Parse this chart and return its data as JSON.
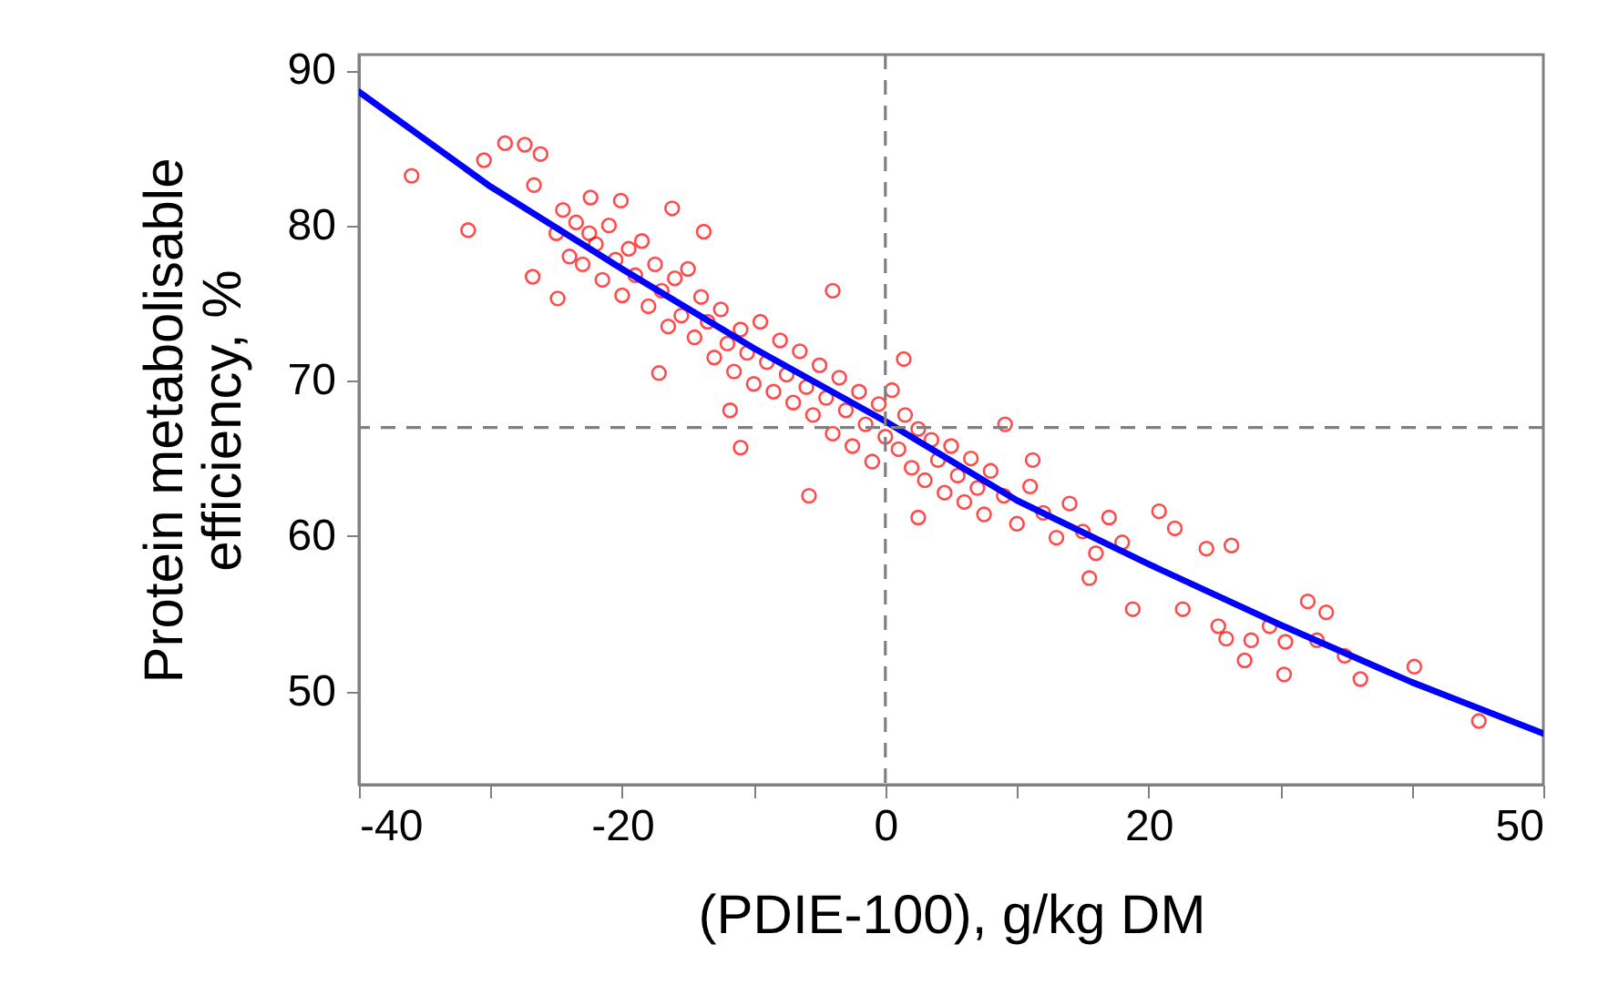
{
  "chart_data": {
    "type": "scatter",
    "xlabel": "(PDIE-100), g/kg DM",
    "ylabel": "Protein metabolisable\nefficiency, %",
    "xlim": [
      -40,
      50
    ],
    "xticks": [
      -40,
      {
        "value": -30,
        "label": null
      },
      -20,
      {
        "value": -10,
        "label": null
      },
      0,
      {
        "value": 10,
        "label": null
      },
      20,
      {
        "value": 30,
        "label": null
      },
      {
        "value": 40,
        "label": null
      },
      50
    ],
    "ylim": [
      44,
      91
    ],
    "yticks": [
      50,
      60,
      70,
      80,
      90
    ],
    "ref_lines": [
      {
        "axis": "x",
        "value": 0,
        "color": "#808080",
        "line_style": "dashed"
      },
      {
        "axis": "y",
        "value": 67,
        "color": "#808080",
        "line_style": "dashed"
      }
    ],
    "series": [
      {
        "color": "#ff0000",
        "marker": "circle",
        "x": [
          -36,
          -31.7,
          -30.5,
          -28.9,
          -27.4,
          -26.2,
          -26.7,
          -26.8,
          -24.9,
          -22.4,
          -20.1,
          -16.2,
          -13.8,
          -17.2,
          -11.8,
          -4,
          1.4,
          -11,
          -5.8,
          2.5,
          9.1,
          11.2,
          20.8,
          22,
          24.4,
          26.3,
          18.8,
          15.5,
          22.6,
          25.3,
          25.9,
          27.3,
          27.8,
          30.3,
          32.1,
          33.5,
          32.8,
          34.9,
          36.1,
          40.2,
          45.1,
          29.2,
          30.4,
          -25,
          -24.5,
          -24,
          -23.5,
          -23,
          -22.5,
          -22,
          -21.5,
          -21,
          -20.5,
          -20,
          -19.5,
          -19,
          -18.5,
          -18,
          -17.5,
          -17,
          -16.5,
          -16,
          -15.5,
          -15,
          -14.5,
          -14,
          -13.5,
          -13,
          -12.5,
          -12,
          -11.5,
          -11,
          -10.5,
          -10,
          -9.5,
          -9,
          -8.5,
          -8,
          -7.5,
          -7,
          -6.5,
          -6,
          -5.5,
          -5,
          -4.5,
          -4,
          -3.5,
          -3,
          -2.5,
          -2,
          -1.5,
          -1,
          -0.5,
          0,
          0.5,
          1,
          1.5,
          2,
          2.5,
          3,
          3.5,
          4,
          4.5,
          5,
          5.5,
          6,
          6.5,
          7,
          7.5,
          8,
          9,
          10,
          11,
          12,
          13,
          14,
          15,
          16,
          17,
          18
        ],
        "values": [
          83.2,
          79.7,
          84.2,
          85.3,
          85.2,
          84.6,
          82.6,
          76.7,
          75.3,
          81.8,
          81.6,
          81.1,
          79.6,
          70.5,
          68.1,
          75.8,
          71.4,
          65.7,
          62.6,
          61.2,
          67.2,
          64.9,
          61.6,
          60.5,
          59.2,
          59.4,
          55.3,
          57.3,
          55.3,
          54.2,
          53.4,
          52,
          53.3,
          51.1,
          55.8,
          55.1,
          53.3,
          52.3,
          50.8,
          51.6,
          48.1,
          54.2,
          53.2,
          79.5,
          81,
          78,
          80.2,
          77.5,
          79.5,
          78.8,
          76.5,
          80,
          77.8,
          75.5,
          78.5,
          76.8,
          79,
          74.8,
          77.5,
          75.8,
          73.5,
          76.6,
          74.2,
          77.2,
          72.8,
          75.4,
          73.8,
          71.5,
          74.6,
          72.4,
          70.6,
          73.3,
          71.8,
          69.8,
          73.8,
          71.2,
          69.3,
          72.6,
          70.4,
          68.6,
          71.9,
          69.6,
          67.8,
          71,
          68.9,
          66.6,
          70.2,
          68.1,
          65.8,
          69.3,
          67.2,
          64.8,
          68.5,
          66.4,
          69.4,
          65.6,
          67.8,
          64.4,
          66.9,
          63.6,
          66.2,
          64.9,
          62.8,
          65.8,
          63.9,
          62.2,
          65,
          63.1,
          61.4,
          64.2,
          62.6,
          60.8,
          63.2,
          61.5,
          59.9,
          62.1,
          60.3,
          58.9,
          61.2,
          59.6
        ]
      },
      {
        "type": "line",
        "color": "#0000ff",
        "marker": "none",
        "x": [
          -40,
          -30,
          -20,
          -10,
          0,
          10,
          20,
          30,
          40,
          50
        ],
        "values": [
          88.6,
          82.5,
          77.2,
          72.1,
          67.4,
          62.3,
          58.2,
          54.3,
          50.6,
          47.3
        ]
      }
    ]
  }
}
